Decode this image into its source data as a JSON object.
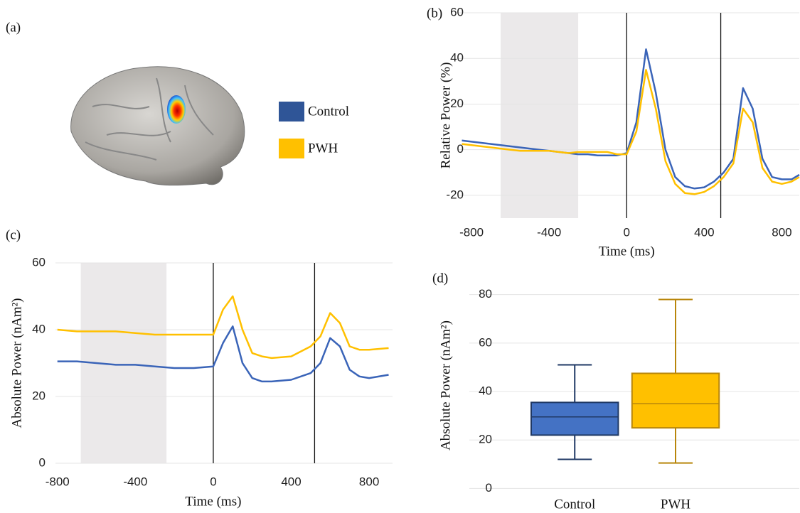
{
  "panel_a": {
    "label": "(a)",
    "legend": [
      {
        "name": "Control",
        "color": "#2f5597"
      },
      {
        "name": "PWH",
        "color": "#ffc000"
      }
    ]
  },
  "chart_data": [
    {
      "type": "line",
      "label": "(b)",
      "ylabel": "Relative Power (%)",
      "xlabel": "Time (ms)",
      "xlim": [
        -870,
        890
      ],
      "ylim": [
        -30,
        60
      ],
      "xticks": [
        -800,
        -400,
        0,
        400,
        800
      ],
      "yticks": [
        -20,
        0,
        20,
        40,
        60
      ],
      "grid": true,
      "shade": [
        -650,
        -250
      ],
      "vlines": [
        0,
        485
      ],
      "x": [
        -850,
        -800,
        -750,
        -700,
        -650,
        -600,
        -550,
        -500,
        -450,
        -400,
        -350,
        -300,
        -250,
        -200,
        -150,
        -100,
        -50,
        0,
        50,
        100,
        150,
        200,
        250,
        300,
        350,
        400,
        450,
        500,
        550,
        600,
        650,
        700,
        750,
        800,
        850,
        890
      ],
      "series": [
        {
          "name": "Control",
          "color": "#3a64b8",
          "values": [
            4,
            3.5,
            3,
            2.5,
            2,
            1.5,
            1,
            0.5,
            0,
            -0.5,
            -1,
            -1.5,
            -2,
            -2,
            -2.5,
            -2.5,
            -2.5,
            -1.5,
            12,
            44,
            25,
            0,
            -12,
            -16,
            -17,
            -16.5,
            -14,
            -10,
            -4,
            27,
            18,
            -4,
            -12,
            -13,
            -13,
            -11
          ]
        },
        {
          "name": "PWH",
          "color": "#ffc000",
          "values": [
            2.5,
            2,
            1.5,
            1,
            0.5,
            0,
            -0.5,
            -0.5,
            -0.5,
            -0.5,
            -1,
            -1.5,
            -1,
            -1,
            -1,
            -1,
            -2,
            -2,
            8,
            35,
            18,
            -5,
            -15,
            -19,
            -19.5,
            -18.5,
            -16,
            -12,
            -6,
            18,
            12,
            -8,
            -14,
            -15,
            -14,
            -12
          ]
        }
      ]
    },
    {
      "type": "line",
      "label": "(c)",
      "ylabel": "Absolute Power (nAm²)",
      "xlabel": "Time (ms)",
      "xlim": [
        -810,
        920
      ],
      "ylim": [
        0,
        60
      ],
      "xticks": [
        -800,
        -400,
        0,
        400,
        800
      ],
      "yticks": [
        0,
        20,
        40,
        60
      ],
      "grid": true,
      "shade": [
        -680,
        -240
      ],
      "vlines": [
        0,
        520
      ],
      "x": [
        -800,
        -700,
        -600,
        -500,
        -400,
        -300,
        -200,
        -100,
        0,
        50,
        100,
        150,
        200,
        250,
        300,
        400,
        500,
        550,
        600,
        650,
        700,
        750,
        800,
        900
      ],
      "series": [
        {
          "name": "Control",
          "color": "#3a64b8",
          "values": [
            30.5,
            30.5,
            30,
            29.5,
            29.5,
            29,
            28.5,
            28.5,
            29,
            36,
            41,
            30,
            25.5,
            24.5,
            24.5,
            25,
            27,
            30,
            37.5,
            35,
            28,
            26,
            25.5,
            26.5
          ]
        },
        {
          "name": "PWH",
          "color": "#ffc000",
          "values": [
            40,
            39.5,
            39.5,
            39.5,
            39,
            38.5,
            38.5,
            38.5,
            38.5,
            46,
            50,
            40,
            33,
            32,
            31.5,
            32,
            35,
            38,
            45,
            42,
            35,
            34,
            34,
            34.5
          ]
        }
      ]
    },
    {
      "type": "box",
      "label": "(d)",
      "ylabel": "Absolute Power (nAm²)",
      "ylim": [
        -4,
        89
      ],
      "yticks": [
        0,
        20,
        40,
        60,
        80
      ],
      "grid": true,
      "categories": [
        "Control",
        "PWH"
      ],
      "boxes": [
        {
          "min": 12,
          "q1": 22,
          "median": 29.5,
          "q3": 35.5,
          "max": 51,
          "color": "#4472c4",
          "edge": "#1f3864"
        },
        {
          "min": 10.5,
          "q1": 25,
          "median": 35,
          "q3": 47.5,
          "max": 78,
          "color": "#ffc000",
          "edge": "#b8860b"
        }
      ]
    }
  ]
}
